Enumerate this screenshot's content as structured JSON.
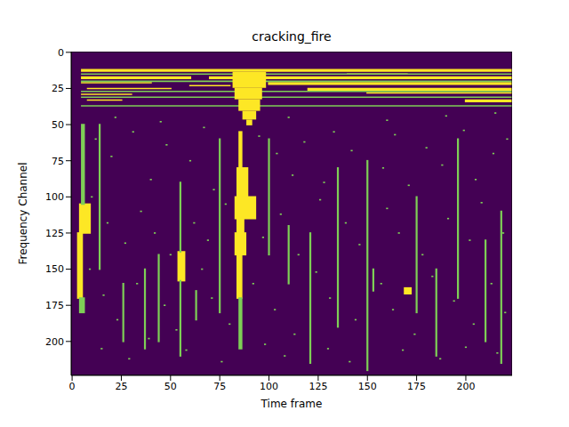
{
  "chart_data": {
    "type": "heatmap",
    "title": "cracking_fire",
    "x_label": "Time frame",
    "y_label": "Frequency Channel",
    "xlim": [
      -0.5,
      223.5
    ],
    "ylim": [
      223.5,
      -0.5
    ],
    "xticks": [
      0,
      25,
      50,
      75,
      100,
      125,
      150,
      175,
      200
    ],
    "yticks": [
      0,
      25,
      50,
      75,
      100,
      125,
      150,
      175,
      200
    ],
    "color": "viridis",
    "color_range": [
      0,
      1
    ],
    "cells": [
      [
        0,
        223,
        0,
        223,
        0
      ],
      [
        5,
        223,
        12,
        13,
        1
      ],
      [
        5,
        60,
        17,
        18,
        1
      ],
      [
        70,
        223,
        17,
        18,
        1
      ],
      [
        5,
        40,
        21,
        21,
        1
      ],
      [
        100,
        223,
        21,
        22,
        1
      ],
      [
        8,
        50,
        25,
        25,
        1
      ],
      [
        120,
        223,
        25,
        26,
        1
      ],
      [
        5,
        30,
        29,
        29,
        1
      ],
      [
        150,
        223,
        28,
        28,
        1
      ],
      [
        8,
        25,
        33,
        33,
        1
      ],
      [
        200,
        223,
        33,
        34,
        1
      ],
      [
        60,
        80,
        23,
        23,
        1
      ],
      [
        140,
        170,
        15,
        15,
        1
      ],
      [
        5,
        223,
        15,
        15,
        0.8
      ],
      [
        5,
        223,
        20,
        20,
        0.8
      ],
      [
        5,
        223,
        27,
        27,
        0.8
      ],
      [
        5,
        223,
        31,
        31,
        0.8
      ],
      [
        5,
        223,
        37,
        37,
        0.8
      ],
      [
        82,
        98,
        14,
        24,
        1
      ],
      [
        83,
        96,
        25,
        32,
        1
      ],
      [
        85,
        95,
        33,
        40,
        1
      ],
      [
        87,
        93,
        41,
        46,
        1
      ],
      [
        89,
        91,
        47,
        50,
        1
      ],
      [
        85,
        86,
        55,
        80,
        1
      ],
      [
        84,
        89,
        80,
        100,
        1
      ],
      [
        83,
        93,
        100,
        115,
        1
      ],
      [
        84,
        87,
        115,
        125,
        1
      ],
      [
        83,
        88,
        125,
        140,
        1
      ],
      [
        84,
        86,
        140,
        170,
        1
      ],
      [
        85,
        86,
        170,
        205,
        0.8
      ],
      [
        4,
        9,
        105,
        125,
        1
      ],
      [
        3,
        5,
        125,
        170,
        1
      ],
      [
        4,
        6,
        170,
        180,
        0.8
      ],
      [
        5,
        6,
        50,
        105,
        0.8
      ],
      [
        54,
        57,
        138,
        158,
        1
      ],
      [
        55,
        55,
        90,
        138,
        0.8
      ],
      [
        55,
        55,
        158,
        210,
        0.8
      ],
      [
        169,
        172,
        163,
        167,
        1
      ],
      [
        37,
        37,
        150,
        205,
        0.8
      ],
      [
        44,
        44,
        140,
        200,
        0.8
      ],
      [
        63,
        63,
        165,
        185,
        0.8
      ],
      [
        75,
        75,
        60,
        180,
        0.8
      ],
      [
        110,
        110,
        120,
        160,
        0.8
      ],
      [
        121,
        121,
        125,
        215,
        0.8
      ],
      [
        150,
        150,
        75,
        220,
        0.8
      ],
      [
        153,
        153,
        150,
        165,
        0.8
      ],
      [
        175,
        175,
        100,
        180,
        0.8
      ],
      [
        196,
        196,
        60,
        170,
        0.8
      ],
      [
        210,
        210,
        130,
        200,
        0.8
      ],
      [
        218,
        218,
        110,
        215,
        0.8
      ],
      [
        26,
        26,
        160,
        200,
        0.8
      ],
      [
        14,
        14,
        50,
        150,
        0.8
      ],
      [
        100,
        100,
        60,
        140,
        0.8
      ],
      [
        135,
        135,
        80,
        190,
        0.8
      ],
      [
        185,
        185,
        150,
        210,
        0.8
      ]
    ],
    "dots": {
      "value": 0.8,
      "xy": [
        [
          12,
          60
        ],
        [
          20,
          72
        ],
        [
          31,
          55
        ],
        [
          40,
          88
        ],
        [
          48,
          64
        ],
        [
          60,
          75
        ],
        [
          67,
          52
        ],
        [
          72,
          95
        ],
        [
          95,
          58
        ],
        [
          104,
          70
        ],
        [
          112,
          85
        ],
        [
          118,
          62
        ],
        [
          128,
          90
        ],
        [
          133,
          55
        ],
        [
          142,
          68
        ],
        [
          158,
          80
        ],
        [
          164,
          57
        ],
        [
          171,
          92
        ],
        [
          180,
          66
        ],
        [
          188,
          78
        ],
        [
          199,
          54
        ],
        [
          205,
          88
        ],
        [
          214,
          70
        ],
        [
          221,
          60
        ],
        [
          10,
          100
        ],
        [
          18,
          118
        ],
        [
          27,
          132
        ],
        [
          35,
          110
        ],
        [
          42,
          125
        ],
        [
          50,
          140
        ],
        [
          62,
          118
        ],
        [
          69,
          130
        ],
        [
          78,
          105
        ],
        [
          97,
          128
        ],
        [
          106,
          112
        ],
        [
          115,
          140
        ],
        [
          126,
          102
        ],
        [
          139,
          118
        ],
        [
          146,
          133
        ],
        [
          160,
          108
        ],
        [
          166,
          125
        ],
        [
          178,
          140
        ],
        [
          191,
          115
        ],
        [
          202,
          130
        ],
        [
          208,
          104
        ],
        [
          219,
          125
        ],
        [
          9,
          150
        ],
        [
          16,
          168
        ],
        [
          23,
          185
        ],
        [
          33,
          160
        ],
        [
          47,
          175
        ],
        [
          53,
          192
        ],
        [
          66,
          150
        ],
        [
          71,
          170
        ],
        [
          80,
          188
        ],
        [
          92,
          160
        ],
        [
          103,
          178
        ],
        [
          113,
          195
        ],
        [
          124,
          152
        ],
        [
          131,
          170
        ],
        [
          144,
          185
        ],
        [
          157,
          160
        ],
        [
          163,
          178
        ],
        [
          174,
          195
        ],
        [
          183,
          155
        ],
        [
          194,
          172
        ],
        [
          204,
          188
        ],
        [
          213,
          160
        ],
        [
          220,
          180
        ],
        [
          15,
          205
        ],
        [
          29,
          212
        ],
        [
          39,
          198
        ],
        [
          58,
          206
        ],
        [
          76,
          214
        ],
        [
          98,
          202
        ],
        [
          108,
          210
        ],
        [
          130,
          205
        ],
        [
          141,
          214
        ],
        [
          168,
          206
        ],
        [
          187,
          212
        ],
        [
          200,
          204
        ],
        [
          216,
          208
        ],
        [
          22,
          45
        ],
        [
          45,
          48
        ],
        [
          110,
          45
        ],
        [
          160,
          47
        ],
        [
          190,
          44
        ],
        [
          215,
          42
        ]
      ]
    }
  }
}
